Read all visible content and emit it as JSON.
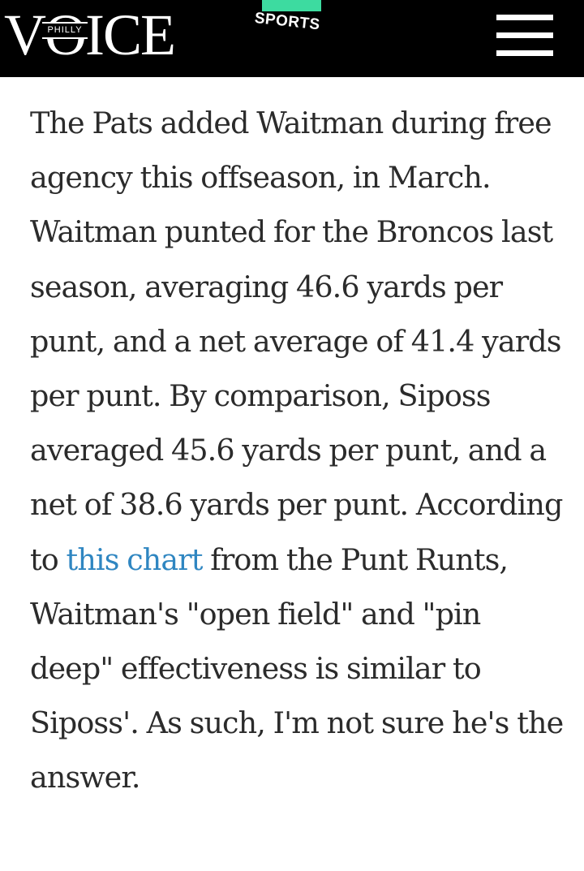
{
  "header": {
    "logo_text": "VOICE",
    "logo_badge": "PHILLY",
    "section_label": "SPORTS",
    "menu_icon": "hamburger-menu-icon",
    "colors": {
      "background": "#000000",
      "accent": "#3ddba0"
    }
  },
  "article": {
    "text_before_link": "The Pats added Waitman during free agency this offseason, in March. Waitman punted for the Broncos last season, averaging 46.6 yards per punt, and a net average of 41.4 yards per punt. By comparison, Siposs averaged 45.6 yards per punt, and a net of 38.6 yards per punt. According to ",
    "link_text": "this chart",
    "text_after_link": " from the Punt Runts, Waitman's \"open field\" and \"pin deep\" effectiveness is similar to Siposs'. As such, I'm not sure he's the answer.",
    "colors": {
      "text": "#2b2b2b",
      "link": "#2f86c1"
    }
  }
}
